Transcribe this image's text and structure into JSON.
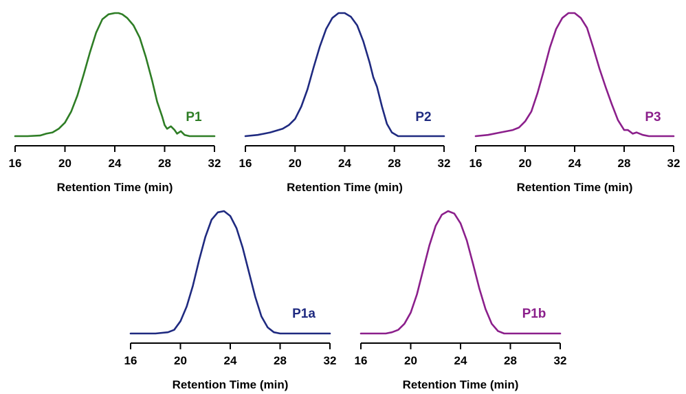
{
  "chart_data": [
    {
      "type": "line",
      "label": "P1",
      "color": "#2E7D25",
      "xlabel": "Retention Time (min)",
      "xlim": [
        16,
        32
      ],
      "xticks": [
        "16",
        "20",
        "24",
        "28",
        "32"
      ],
      "y_visible": false,
      "x": [
        16.0,
        17.0,
        18.0,
        18.5,
        19.0,
        19.5,
        20.0,
        20.5,
        21.0,
        21.5,
        22.0,
        22.5,
        23.0,
        23.5,
        24.0,
        24.3,
        24.6,
        25.0,
        25.5,
        26.0,
        26.5,
        27.0,
        27.4,
        27.8,
        28.0,
        28.2,
        28.5,
        28.8,
        29.0,
        29.3,
        29.6,
        30.0,
        31.0,
        32.0
      ],
      "y": [
        0.0,
        0.0,
        0.005,
        0.02,
        0.03,
        0.06,
        0.11,
        0.2,
        0.33,
        0.5,
        0.68,
        0.84,
        0.95,
        0.99,
        1.0,
        1.0,
        0.99,
        0.96,
        0.9,
        0.8,
        0.64,
        0.45,
        0.28,
        0.16,
        0.09,
        0.06,
        0.08,
        0.05,
        0.02,
        0.04,
        0.01,
        0.0,
        0.0,
        0.0
      ]
    },
    {
      "type": "line",
      "label": "P2",
      "color": "#1F2A80",
      "xlabel": "Retention Time (min)",
      "xlim": [
        16,
        32
      ],
      "xticks": [
        "16",
        "20",
        "24",
        "28",
        "32"
      ],
      "y_visible": false,
      "x": [
        16.0,
        17.0,
        18.0,
        19.0,
        19.5,
        20.0,
        20.5,
        21.0,
        21.5,
        22.0,
        22.5,
        23.0,
        23.5,
        24.0,
        24.5,
        25.0,
        25.5,
        26.0,
        26.3,
        26.6,
        27.0,
        27.4,
        27.8,
        28.3,
        29.0,
        30.0,
        32.0
      ],
      "y": [
        0.0,
        0.01,
        0.03,
        0.06,
        0.09,
        0.14,
        0.24,
        0.38,
        0.56,
        0.73,
        0.87,
        0.96,
        1.0,
        1.0,
        0.97,
        0.9,
        0.77,
        0.6,
        0.48,
        0.4,
        0.24,
        0.1,
        0.03,
        0.0,
        0.0,
        0.0,
        0.0
      ]
    },
    {
      "type": "line",
      "label": "P3",
      "color": "#8B1F8B",
      "xlabel": "Retention Time (min)",
      "xlim": [
        16,
        32
      ],
      "xticks": [
        "16",
        "20",
        "24",
        "28",
        "32"
      ],
      "y_visible": false,
      "x": [
        16.0,
        17.0,
        18.0,
        19.0,
        19.5,
        20.0,
        20.5,
        21.0,
        21.5,
        22.0,
        22.5,
        23.0,
        23.5,
        24.0,
        24.5,
        25.0,
        25.5,
        26.0,
        26.5,
        27.0,
        27.5,
        28.0,
        28.3,
        28.7,
        29.0,
        29.5,
        30.0,
        32.0
      ],
      "y": [
        0.0,
        0.01,
        0.03,
        0.05,
        0.07,
        0.12,
        0.2,
        0.35,
        0.53,
        0.72,
        0.87,
        0.96,
        1.0,
        1.0,
        0.96,
        0.88,
        0.72,
        0.55,
        0.4,
        0.26,
        0.13,
        0.05,
        0.05,
        0.02,
        0.03,
        0.01,
        0.0,
        0.0
      ]
    },
    {
      "type": "line",
      "label": "P1a",
      "color": "#1F2A80",
      "xlabel": "Retention Time (min)",
      "xlim": [
        16,
        32
      ],
      "xticks": [
        "16",
        "20",
        "24",
        "28",
        "32"
      ],
      "y_visible": false,
      "x": [
        16.0,
        18.0,
        19.0,
        19.5,
        20.0,
        20.5,
        21.0,
        21.5,
        22.0,
        22.5,
        23.0,
        23.5,
        24.0,
        24.5,
        25.0,
        25.5,
        26.0,
        26.5,
        27.0,
        27.5,
        28.0,
        30.0,
        32.0
      ],
      "y": [
        0.0,
        0.0,
        0.01,
        0.03,
        0.1,
        0.22,
        0.39,
        0.6,
        0.79,
        0.93,
        0.99,
        1.0,
        0.96,
        0.86,
        0.7,
        0.5,
        0.3,
        0.14,
        0.05,
        0.01,
        0.0,
        0.0,
        0.0
      ]
    },
    {
      "type": "line",
      "label": "P1b",
      "color": "#8B1F8B",
      "xlabel": "Retention Time (min)",
      "xlim": [
        16,
        32
      ],
      "xticks": [
        "16",
        "20",
        "24",
        "28",
        "32"
      ],
      "y_visible": false,
      "x": [
        16.0,
        18.0,
        18.5,
        19.0,
        19.5,
        20.0,
        20.5,
        21.0,
        21.5,
        22.0,
        22.5,
        23.0,
        23.5,
        24.0,
        24.5,
        25.0,
        25.5,
        26.0,
        26.5,
        27.0,
        27.5,
        28.0,
        30.0,
        32.0
      ],
      "y": [
        0.0,
        0.0,
        0.01,
        0.03,
        0.08,
        0.17,
        0.32,
        0.52,
        0.72,
        0.88,
        0.97,
        1.0,
        0.98,
        0.9,
        0.76,
        0.57,
        0.37,
        0.2,
        0.08,
        0.02,
        0.0,
        0.0,
        0.0,
        0.0
      ]
    }
  ]
}
